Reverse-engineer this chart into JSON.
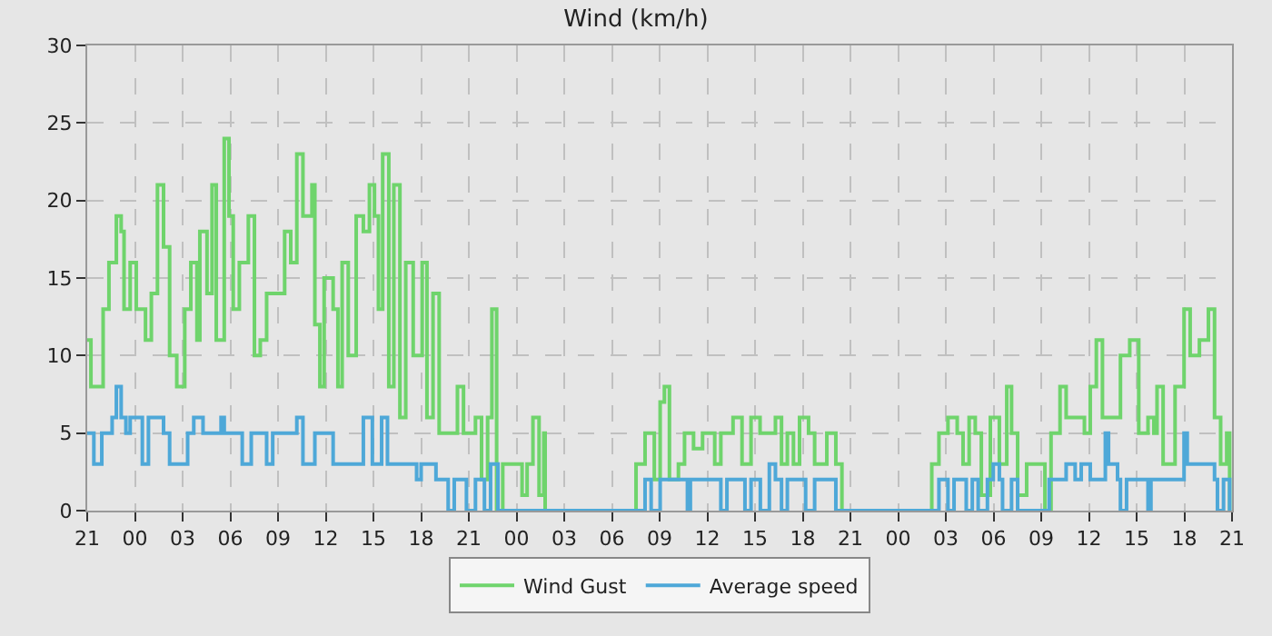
{
  "chart_data": {
    "type": "step",
    "title": "Wind (km/h)",
    "xlim": [
      "--01-01T21:00",
      "--01-04T21:00"
    ],
    "xticks": [
      {
        "value": "--01-01T21:00",
        "label": "21"
      },
      {
        "value": "--01-02T00:00",
        "label": "00"
      },
      {
        "value": "--01-02T03:00",
        "label": "03"
      },
      {
        "value": "--01-02T06:00",
        "label": "06"
      },
      {
        "value": "--01-02T09:00",
        "label": "09"
      },
      {
        "value": "--01-02T12:00",
        "label": "12"
      },
      {
        "value": "--01-02T15:00",
        "label": "15"
      },
      {
        "value": "--01-02T18:00",
        "label": "18"
      },
      {
        "value": "--01-02T21:00",
        "label": "21"
      },
      {
        "value": "--01-03T00:00",
        "label": "00"
      },
      {
        "value": "--01-03T03:00",
        "label": "03"
      },
      {
        "value": "--01-03T06:00",
        "label": "06"
      },
      {
        "value": "--01-03T09:00",
        "label": "09"
      },
      {
        "value": "--01-03T12:00",
        "label": "12"
      },
      {
        "value": "--01-03T15:00",
        "label": "15"
      },
      {
        "value": "--01-03T18:00",
        "label": "18"
      },
      {
        "value": "--01-03T21:00",
        "label": "21"
      },
      {
        "value": "--01-04T00:00",
        "label": "00"
      },
      {
        "value": "--01-04T03:00",
        "label": "03"
      },
      {
        "value": "--01-04T06:00",
        "label": "06"
      },
      {
        "value": "--01-04T09:00",
        "label": "09"
      },
      {
        "value": "--01-04T12:00",
        "label": "12"
      },
      {
        "value": "--01-04T15:00",
        "label": "15"
      },
      {
        "value": "--01-04T18:00",
        "label": "18"
      },
      {
        "value": "--01-04T21:00",
        "label": "21"
      }
    ],
    "ylim": [
      0,
      30
    ],
    "yticks": [
      0,
      5,
      10,
      15,
      20,
      25,
      30
    ],
    "grid": true,
    "legend": "bottom",
    "marker": "none",
    "line_style": "solid",
    "series": [
      {
        "name": "Wind Gust",
        "color": "#6fd46c",
        "x": [
          "--01-01T21:00",
          "--01-01T21:14",
          "--01-01T22:00",
          "--01-01T22:22",
          "--01-01T22:50",
          "--01-01T23:08",
          "--01-01T23:19",
          "--01-01T23:42",
          "--01-02T00:05",
          "--01-02T00:40",
          "--01-02T01:02",
          "--01-02T01:25",
          "--01-02T01:48",
          "--01-02T02:11",
          "--01-02T02:38",
          "--01-02T03:08",
          "--01-02T03:31",
          "--01-02T03:54",
          "--01-02T04:05",
          "--01-02T04:32",
          "--01-02T04:51",
          "--01-02T05:07",
          "--01-02T05:37",
          "--01-02T05:55",
          "--01-02T06:11",
          "--01-02T06:34",
          "--01-02T07:08",
          "--01-02T07:31",
          "--01-02T07:53",
          "--01-02T08:17",
          "--01-02T09:25",
          "--01-02T09:48",
          "--01-02T10:11",
          "--01-02T10:34",
          "--01-02T11:08",
          "--01-02T11:19",
          "--01-02T11:38",
          "--01-02T11:54",
          "--01-02T12:28",
          "--01-02T12:46",
          "--01-02T13:02",
          "--01-02T13:25",
          "--01-02T13:55",
          "--01-02T14:22",
          "--01-02T14:45",
          "--01-02T15:04",
          "--01-02T15:19",
          "--01-02T15:35",
          "--01-02T15:58",
          "--01-02T16:17",
          "--01-02T16:40",
          "--01-02T17:02",
          "--01-02T17:30",
          "--01-02T18:04",
          "--01-02T18:22",
          "--01-02T18:45",
          "--01-02T19:08",
          "--01-02T20:17",
          "--01-02T20:40",
          "--01-02T21:02",
          "--01-02T21:25",
          "--01-02T21:48",
          "--01-02T22:11",
          "--01-02T22:27",
          "--01-02T22:45",
          "--01-02T23:08",
          "--01-02T23:42",
          "--01-03T00:21",
          "--01-03T00:40",
          "--01-03T01:02",
          "--01-03T01:25",
          "--01-03T01:43",
          "--01-03T01:48",
          "--01-03T07:31",
          "--01-03T08:05",
          "--01-03T08:40",
          "--01-03T09:02",
          "--01-03T09:18",
          "--01-03T09:37",
          "--01-03T10:11",
          "--01-03T10:34",
          "--01-03T11:08",
          "--01-03T11:42",
          "--01-03T12:28",
          "--01-03T12:51",
          "--01-03T13:37",
          "--01-03T14:11",
          "--01-03T14:45",
          "--01-03T15:19",
          "--01-03T15:54",
          "--01-03T16:17",
          "--01-03T16:40",
          "--01-03T17:02",
          "--01-03T17:25",
          "--01-03T17:48",
          "--01-03T18:22",
          "--01-03T18:45",
          "--01-03T19:31",
          "--01-03T20:05",
          "--01-03T20:28",
          "--01-04T02:07",
          "--01-04T02:34",
          "--01-04T03:08",
          "--01-04T03:43",
          "--01-04T04:05",
          "--01-04T04:28",
          "--01-04T04:51",
          "--01-04T05:14",
          "--01-04T05:48",
          "--01-04T06:22",
          "--01-04T06:50",
          "--01-04T07:08",
          "--01-04T07:31",
          "--01-04T08:05",
          "--01-04T08:51",
          "--01-04T09:14",
          "--01-04T09:37",
          "--01-04T10:11",
          "--01-04T10:34",
          "--01-04T11:08",
          "--01-04T11:43",
          "--01-04T12:05",
          "--01-04T12:28",
          "--01-04T12:51",
          "--01-04T13:25",
          "--01-04T13:59",
          "--01-04T14:34",
          "--01-04T15:08",
          "--01-04T15:43",
          "--01-04T16:05",
          "--01-04T16:17",
          "--01-04T16:40",
          "--01-04T17:25",
          "--01-04T17:59",
          "--01-04T18:22",
          "--01-04T18:57",
          "--01-04T19:31",
          "--01-04T19:54",
          "--01-04T20:17",
          "--01-04T20:40",
          "--01-04T20:51"
        ],
        "values": [
          11,
          8,
          13,
          16,
          19,
          18,
          13,
          16,
          13,
          11,
          14,
          21,
          17,
          10,
          8,
          13,
          16,
          11,
          18,
          14,
          21,
          11,
          24,
          19,
          13,
          16,
          19,
          10,
          11,
          14,
          18,
          16,
          23,
          19,
          21,
          12,
          8,
          15,
          13,
          8,
          16,
          10,
          19,
          18,
          21,
          19,
          13,
          23,
          8,
          21,
          6,
          16,
          10,
          16,
          6,
          14,
          5,
          8,
          5,
          5,
          6,
          2,
          6,
          13,
          0,
          3,
          3,
          1,
          3,
          6,
          1,
          5,
          0,
          3,
          5,
          2,
          7,
          8,
          2,
          3,
          5,
          4,
          5,
          3,
          5,
          6,
          3,
          6,
          5,
          5,
          6,
          3,
          5,
          3,
          6,
          5,
          3,
          5,
          3,
          0,
          3,
          5,
          6,
          5,
          3,
          6,
          5,
          1,
          6,
          3,
          8,
          5,
          1,
          3,
          3,
          0,
          5,
          8,
          6,
          6,
          5,
          8,
          11,
          6,
          6,
          10,
          11,
          5,
          6,
          5,
          8,
          3,
          8,
          13,
          10,
          11,
          13,
          6,
          3,
          5,
          0
        ]
      },
      {
        "name": "Average speed",
        "color": "#4ea8d8",
        "x": [
          "--01-01T21:00",
          "--01-01T21:25",
          "--01-01T21:55",
          "--01-01T22:34",
          "--01-01T22:50",
          "--01-01T23:08",
          "--01-01T23:26",
          "--01-01T23:42",
          "--01-02T00:28",
          "--01-02T00:51",
          "--01-02T01:48",
          "--01-02T02:11",
          "--01-02T03:19",
          "--01-02T03:42",
          "--01-02T04:17",
          "--01-02T05:25",
          "--01-02T05:37",
          "--01-02T06:45",
          "--01-02T07:19",
          "--01-02T08:17",
          "--01-02T08:40",
          "--01-02T10:11",
          "--01-02T10:34",
          "--01-02T11:19",
          "--01-02T12:28",
          "--01-02T14:22",
          "--01-02T14:56",
          "--01-02T15:31",
          "--01-02T15:53",
          "--01-02T17:43",
          "--01-02T18:00",
          "--01-02T18:56",
          "--01-02T19:42",
          "--01-02T20:05",
          "--01-02T20:51",
          "--01-02T21:25",
          "--01-02T21:59",
          "--01-02T22:22",
          "--01-02T22:50",
          "--01-03T08:05",
          "--01-03T08:28",
          "--01-03T09:02",
          "--01-03T10:45",
          "--01-03T10:56",
          "--01-03T12:51",
          "--01-03T13:14",
          "--01-03T14:22",
          "--01-03T14:45",
          "--01-03T15:20",
          "--01-03T15:54",
          "--01-03T16:17",
          "--01-03T16:40",
          "--01-03T17:02",
          "--01-03T18:11",
          "--01-03T18:45",
          "--01-03T20:05",
          "--01-04T02:34",
          "--01-04T03:08",
          "--01-04T03:31",
          "--01-04T04:17",
          "--01-04T04:40",
          "--01-04T05:02",
          "--01-04T05:37",
          "--01-04T05:59",
          "--01-04T06:22",
          "--01-04T06:34",
          "--01-04T07:08",
          "--01-04T07:31",
          "--01-04T09:30",
          "--01-04T10:34",
          "--01-04T11:08",
          "--01-04T11:31",
          "--01-04T12:05",
          "--01-04T13:02",
          "--01-04T13:14",
          "--01-04T13:48",
          "--01-04T13:59",
          "--01-04T14:22",
          "--01-04T15:43",
          "--01-04T15:54",
          "--01-04T17:59",
          "--01-04T18:11",
          "--01-04T19:54",
          "--01-04T20:05",
          "--01-04T20:28",
          "--01-04T20:51"
        ],
        "values": [
          5,
          3,
          5,
          6,
          8,
          6,
          5,
          6,
          3,
          6,
          5,
          3,
          5,
          6,
          5,
          6,
          5,
          3,
          5,
          3,
          5,
          6,
          3,
          5,
          3,
          6,
          3,
          6,
          3,
          2,
          3,
          2,
          0,
          2,
          0,
          2,
          0,
          3,
          0,
          2,
          0,
          2,
          0,
          2,
          0,
          2,
          0,
          2,
          0,
          3,
          2,
          0,
          2,
          0,
          2,
          0,
          2,
          0,
          2,
          0,
          2,
          0,
          2,
          3,
          2,
          0,
          2,
          0,
          2,
          3,
          2,
          3,
          2,
          5,
          3,
          2,
          0,
          2,
          0,
          2,
          5,
          3,
          2,
          0,
          2,
          0
        ]
      }
    ]
  }
}
